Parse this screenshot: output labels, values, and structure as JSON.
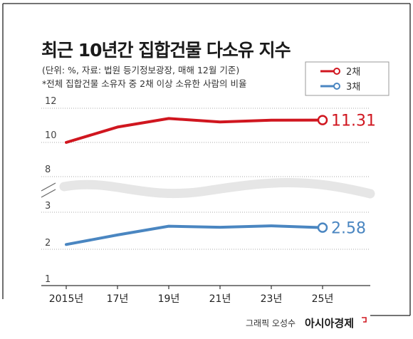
{
  "chart_data": {
    "type": "line",
    "title": "최근 10년간 집합건물 다소유 지수",
    "subtitle": "(단위: %, 자료: 법원 등기정보광장, 매해 12월 기준)",
    "note": "*전체 집합건물 소유자 중 2채 이상 소유한 사람의 비율",
    "x": [
      "2015년",
      "17년",
      "19년",
      "21년",
      "23년",
      "25년"
    ],
    "series": [
      {
        "name": "2채",
        "color": "#d0161f",
        "values": [
          10.0,
          10.9,
          11.4,
          11.2,
          11.3,
          11.31
        ],
        "end_label": "11.31"
      },
      {
        "name": "3채",
        "color": "#4a86c1",
        "values": [
          2.12,
          2.38,
          2.62,
          2.59,
          2.63,
          2.58
        ],
        "end_label": "2.58"
      }
    ],
    "y_ticks_upper": [
      "12",
      "10",
      "8"
    ],
    "y_ticks_lower": [
      "3",
      "2",
      "1"
    ],
    "upper_ylim": [
      8,
      12
    ],
    "lower_ylim": [
      1,
      3
    ],
    "axis_break": true,
    "grid": true,
    "legend_position": "top-right"
  },
  "credit": {
    "label": "그래픽 오성수",
    "brand": "아시아경제"
  }
}
